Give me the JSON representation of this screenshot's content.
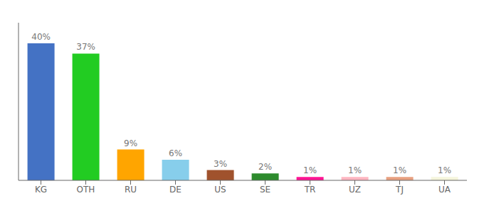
{
  "chart_data": {
    "type": "bar",
    "categories": [
      "KG",
      "OTH",
      "RU",
      "DE",
      "US",
      "SE",
      "TR",
      "UZ",
      "TJ",
      "UA"
    ],
    "values": [
      40,
      37,
      9,
      6,
      3,
      2,
      1,
      1,
      1,
      1
    ],
    "value_labels": [
      "40%",
      "37%",
      "9%",
      "6%",
      "3%",
      "2%",
      "1%",
      "1%",
      "1%",
      "1%"
    ],
    "colors": [
      "#4472C4",
      "#22CC22",
      "#FFA500",
      "#87CEEB",
      "#A0522D",
      "#2D8B2D",
      "#FF1493",
      "#FFB6C1",
      "#E8A080",
      "#F5F5DC"
    ],
    "ylim": [
      0,
      46
    ],
    "data_labels": true,
    "tick_labels": "x",
    "grid": false
  }
}
